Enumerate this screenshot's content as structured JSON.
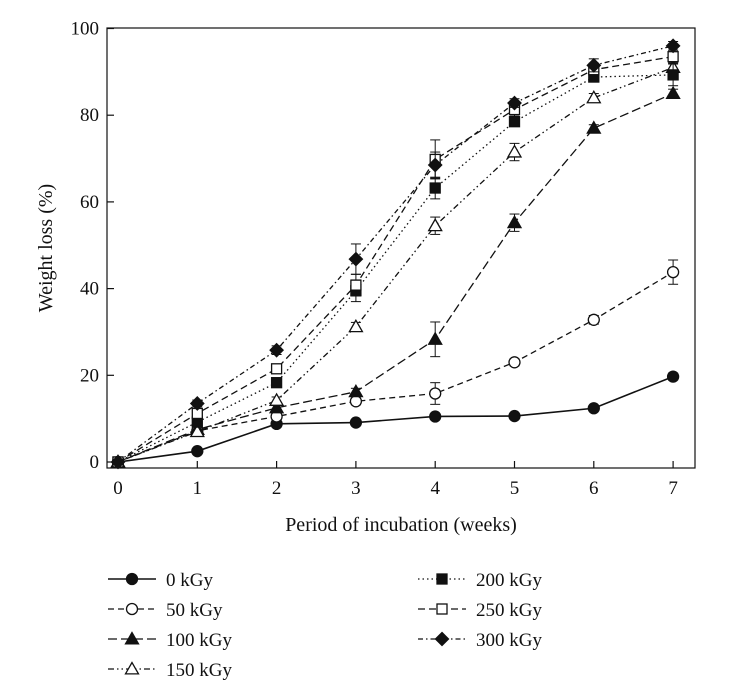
{
  "chart_data": {
    "type": "line",
    "xlabel": "Period of incubation (weeks)",
    "ylabel": "Weight loss (%)",
    "x": [
      0,
      1,
      2,
      3,
      4,
      5,
      6,
      7
    ],
    "xlim": [
      -0.15,
      7.45
    ],
    "ylim": [
      -2,
      100
    ],
    "xticks": [
      "0",
      "1",
      "2",
      "3",
      "4",
      "5",
      "6",
      "7"
    ],
    "yticks": [
      "0",
      "20",
      "40",
      "60",
      "80",
      "100"
    ],
    "grid": false,
    "legend_position": "bottom",
    "series": [
      {
        "name": "0 kGy",
        "marker": "filled-circle",
        "dash": "solid",
        "values": [
          0,
          2.5,
          8.8,
          9.1,
          10.5,
          10.6,
          12.4,
          19.7
        ],
        "errors": [
          0,
          0.5,
          0.5,
          0.5,
          0.5,
          0.5,
          0.6,
          0.8
        ]
      },
      {
        "name": "50 kGy",
        "marker": "open-circle",
        "dash": "dashed",
        "values": [
          0,
          7.2,
          10.5,
          14.0,
          15.8,
          23.0,
          32.8,
          43.8
        ],
        "errors": [
          0,
          0.6,
          0.8,
          0.8,
          2.5,
          0.8,
          1.0,
          2.8
        ]
      },
      {
        "name": "100 kGy",
        "marker": "filled-triangle",
        "dash": "long-dashed",
        "values": [
          0,
          7.5,
          12.5,
          16.2,
          28.3,
          55.2,
          77.0,
          85.0
        ],
        "errors": [
          0,
          0.6,
          0.8,
          0.8,
          4.0,
          2.0,
          0.8,
          1.0
        ]
      },
      {
        "name": "150 kGy",
        "marker": "open-triangle",
        "dash": "dash-dot-dot",
        "values": [
          0,
          7.0,
          14.2,
          31.2,
          54.5,
          71.5,
          84.0,
          91.0
        ],
        "errors": [
          0,
          0.6,
          0.8,
          1.0,
          2.0,
          2.0,
          1.0,
          1.2
        ]
      },
      {
        "name": "200 kGy",
        "marker": "filled-square",
        "dash": "dotted",
        "values": [
          0,
          9.2,
          18.3,
          39.5,
          63.2,
          78.5,
          88.8,
          89.3
        ],
        "errors": [
          0,
          0.8,
          1.0,
          2.5,
          2.5,
          1.0,
          1.0,
          2.5
        ]
      },
      {
        "name": "250 kGy",
        "marker": "open-square",
        "dash": "dash",
        "values": [
          0,
          11.2,
          21.5,
          40.8,
          69.8,
          81.3,
          90.5,
          93.5
        ],
        "errors": [
          0,
          1.0,
          1.0,
          2.5,
          4.5,
          1.5,
          1.5,
          1.5
        ]
      },
      {
        "name": "300 kGy",
        "marker": "filled-diamond",
        "dash": "dotted-fine",
        "values": [
          0,
          13.5,
          25.8,
          46.8,
          68.5,
          82.8,
          91.5,
          96.0
        ],
        "errors": [
          0,
          0.8,
          1.0,
          3.5,
          3.0,
          1.0,
          1.5,
          1.0
        ]
      }
    ]
  }
}
